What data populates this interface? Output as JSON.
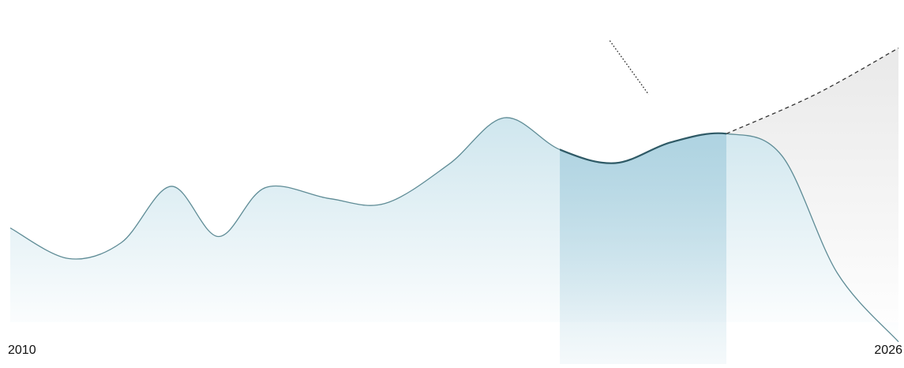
{
  "chart_data": {
    "type": "area",
    "title": "",
    "xlabel": "",
    "ylabel": "",
    "xlim": [
      2010,
      2026
    ],
    "ylim": [
      0,
      100
    ],
    "grid": false,
    "x_tick_labels": [
      "2010",
      "2026"
    ],
    "series": [
      {
        "role": "observed",
        "color": "#5f8c96",
        "fill_top": "#cfe6ee",
        "fill_bottom": "#ffffff",
        "points": [
          [
            2010.0,
            38.5
          ],
          [
            2011.05,
            26.0
          ],
          [
            2012.0,
            32.5
          ],
          [
            2012.9,
            55.5
          ],
          [
            2013.75,
            35.0
          ],
          [
            2014.6,
            55.0
          ],
          [
            2015.75,
            50.5
          ],
          [
            2016.75,
            48.5
          ],
          [
            2017.9,
            64.5
          ],
          [
            2018.9,
            83.5
          ],
          [
            2019.9,
            70.5
          ],
          [
            2020.9,
            65.0
          ],
          [
            2021.9,
            73.5
          ],
          [
            2022.9,
            77.0
          ],
          [
            2023.9,
            68.0
          ],
          [
            2024.9,
            20.0
          ],
          [
            2026.0,
            -8.0
          ]
        ]
      },
      {
        "role": "projection",
        "line_style": "dashed",
        "color": "#333333",
        "fill": "#e9e9e9",
        "points": [
          [
            2022.9,
            77.0
          ],
          [
            2024.5,
            93.0
          ],
          [
            2026.0,
            112.0
          ]
        ]
      }
    ],
    "highlight_band": {
      "x_range": [
        2019.9,
        2022.9
      ],
      "color": "#a9d0df"
    },
    "annotations": [
      {
        "type": "dotted-leader",
        "color": "#333333",
        "from": [
          2020.8,
          115.0
        ],
        "to": [
          2021.5,
          93.0
        ]
      }
    ]
  }
}
